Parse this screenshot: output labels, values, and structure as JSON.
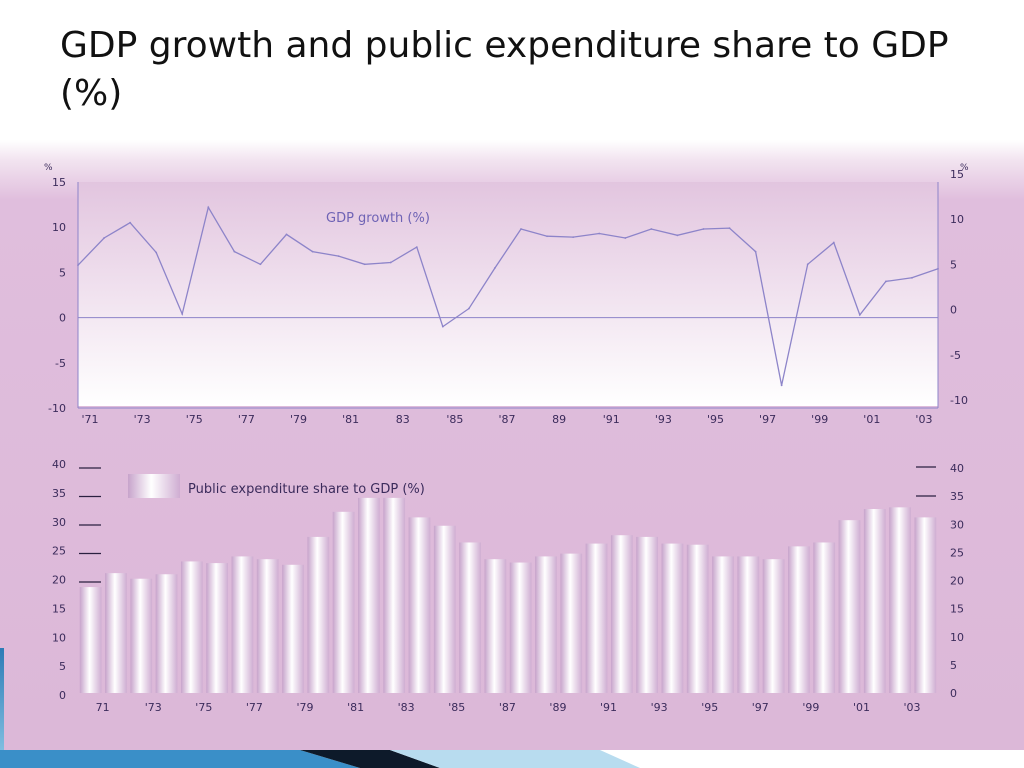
{
  "slide": {
    "title": "GDP growth and public expenditure share to GDP (%)"
  },
  "chart_data": [
    {
      "type": "line",
      "legend": "GDP growth (%)",
      "unit_left": "%",
      "unit_right": "%",
      "x": [
        1971,
        1972,
        1973,
        1974,
        1975,
        1976,
        1977,
        1978,
        1979,
        1980,
        1981,
        1982,
        1983,
        1984,
        1985,
        1986,
        1987,
        1988,
        1989,
        1990,
        1991,
        1992,
        1993,
        1994,
        1995,
        1996,
        1997,
        1998,
        1999,
        2000,
        2001,
        2002,
        2003,
        2004
      ],
      "values": [
        5.8,
        8.8,
        10.5,
        7.2,
        0.4,
        12.2,
        7.3,
        5.9,
        9.2,
        7.3,
        6.8,
        5.9,
        6.1,
        7.8,
        -1.0,
        1.0,
        5.5,
        9.8,
        9.0,
        8.9,
        9.3,
        8.8,
        9.8,
        9.1,
        9.8,
        9.9,
        7.3,
        -7.5,
        5.9,
        8.3,
        0.3,
        4.0,
        4.4,
        5.4
      ],
      "x_tick_labels": [
        "'71",
        "'73",
        "'75",
        "'77",
        "'79",
        "'81",
        "83",
        "'85",
        "'87",
        "89",
        "'91",
        "'93",
        "'95",
        "'97",
        "'99",
        "'01",
        "'03"
      ],
      "y_ticks_left": [
        "15",
        "10",
        "5",
        "0",
        "-5",
        "-10"
      ],
      "y_ticks_right": [
        "15",
        "10",
        "5",
        "0",
        "-5",
        "-10"
      ],
      "ylim": [
        -10,
        15
      ],
      "grid": false,
      "reference_line": 0,
      "colors": {
        "line": "#8d84c9",
        "zero_line": "#8d84c9",
        "axis": "#8d84c9"
      }
    },
    {
      "type": "bar",
      "legend": "Public expenditure share to GDP (%)",
      "categories": [
        1971,
        1972,
        1973,
        1974,
        1975,
        1976,
        1977,
        1978,
        1979,
        1980,
        1981,
        1982,
        1983,
        1984,
        1985,
        1986,
        1987,
        1988,
        1989,
        1990,
        1991,
        1992,
        1993,
        1994,
        1995,
        1996,
        1997,
        1998,
        1999,
        2000,
        2001,
        2002,
        2003,
        2004
      ],
      "values": [
        19.0,
        21.5,
        20.5,
        21.3,
        23.6,
        23.3,
        24.5,
        24.0,
        23.0,
        28.0,
        32.5,
        35.0,
        35.0,
        31.5,
        30.0,
        27.0,
        24.0,
        23.4,
        24.5,
        25.0,
        26.8,
        28.3,
        28.0,
        26.8,
        26.6,
        24.5,
        24.5,
        24.0,
        26.3,
        27.0,
        31.0,
        33.0,
        33.3,
        31.5
      ],
      "x_tick_labels": [
        "71",
        "'73",
        "'75",
        "'77",
        "'79",
        "'81",
        "'83",
        "'85",
        "'87",
        "'89",
        "'91",
        "'93",
        "'95",
        "'97",
        "'99",
        "'01",
        "'03"
      ],
      "y_ticks_left": [
        "40",
        "35",
        "30",
        "25",
        "20",
        "15",
        "10",
        "5",
        "0"
      ],
      "y_ticks_right": [
        "40",
        "35",
        "30",
        "25",
        "20",
        "15",
        "10",
        "5",
        "0"
      ],
      "ylim": [
        0,
        40
      ],
      "colors": {
        "bar_edge": "#c9a6cc",
        "bar_center": "#ffffff",
        "tick_marks": "#2b2040"
      }
    }
  ]
}
